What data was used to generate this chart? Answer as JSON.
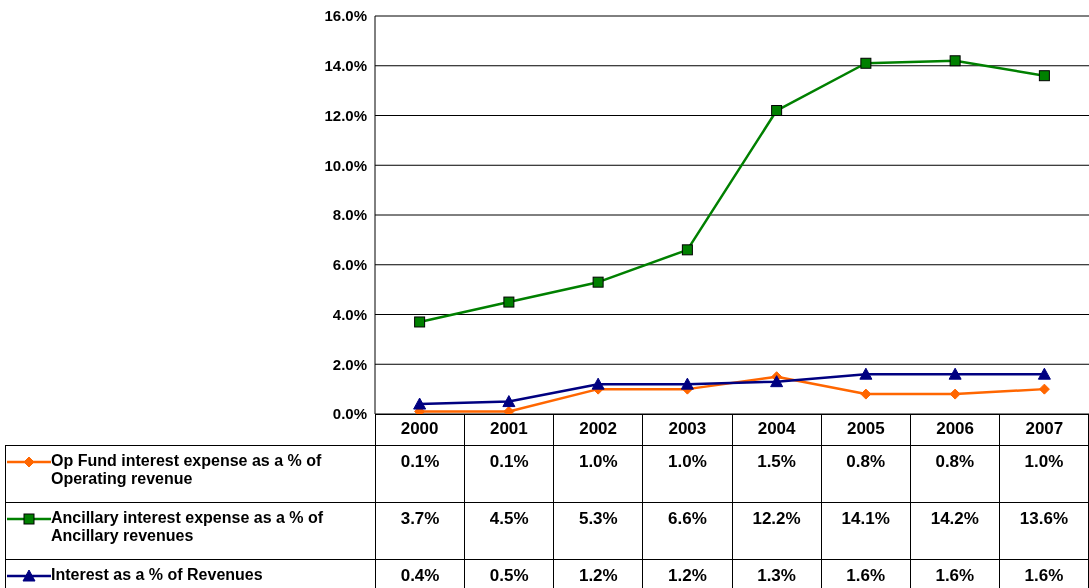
{
  "chart_data": {
    "type": "line",
    "categories": [
      "2000",
      "2001",
      "2002",
      "2003",
      "2004",
      "2005",
      "2006",
      "2007"
    ],
    "series": [
      {
        "name": "Op Fund interest expense as a % of Operating revenue",
        "color": "#ff6600",
        "marker": "diamond",
        "values": [
          0.1,
          0.1,
          1.0,
          1.0,
          1.5,
          0.8,
          0.8,
          1.0
        ],
        "value_labels": [
          "0.1%",
          "0.1%",
          "1.0%",
          "1.0%",
          "1.5%",
          "0.8%",
          "0.8%",
          "1.0%"
        ]
      },
      {
        "name": "Ancillary interest expense as a % of Ancillary revenues",
        "color": "#008000",
        "marker": "square",
        "values": [
          3.7,
          4.5,
          5.3,
          6.6,
          12.2,
          14.1,
          14.2,
          13.6
        ],
        "value_labels": [
          "3.7%",
          "4.5%",
          "5.3%",
          "6.6%",
          "12.2%",
          "14.1%",
          "14.2%",
          "13.6%"
        ]
      },
      {
        "name": "Interest as a % of Revenues",
        "color": "#000080",
        "marker": "triangle",
        "values": [
          0.4,
          0.5,
          1.2,
          1.2,
          1.3,
          1.6,
          1.6,
          1.6
        ],
        "value_labels": [
          "0.4%",
          "0.5%",
          "1.2%",
          "1.2%",
          "1.3%",
          "1.6%",
          "1.6%",
          "1.6%"
        ]
      }
    ],
    "ylim": [
      0,
      16
    ],
    "yticks": [
      {
        "value": 0,
        "label": "0.0%"
      },
      {
        "value": 2,
        "label": "2.0%"
      },
      {
        "value": 4,
        "label": "4.0%"
      },
      {
        "value": 6,
        "label": "6.0%"
      },
      {
        "value": 8,
        "label": "8.0%"
      },
      {
        "value": 10,
        "label": "10.0%"
      },
      {
        "value": 12,
        "label": "12.0%"
      },
      {
        "value": 14,
        "label": "14.0%"
      },
      {
        "value": 16,
        "label": "16.0%"
      }
    ],
    "grid": "y",
    "legend": "bottom left",
    "line_style": "solid"
  }
}
